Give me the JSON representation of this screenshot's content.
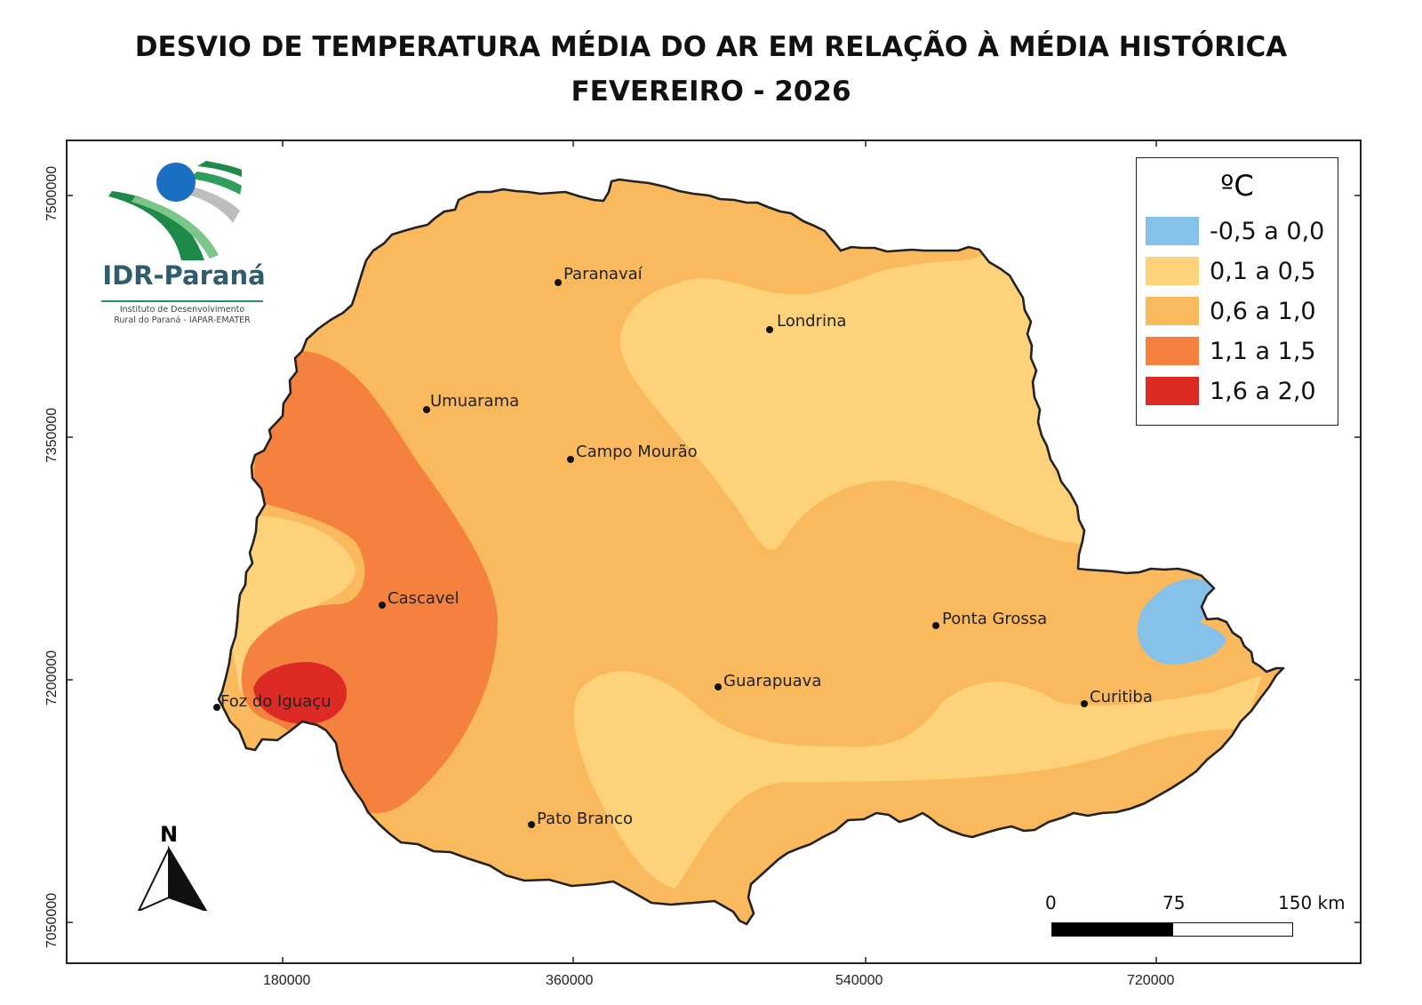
{
  "title": {
    "line1": "DESVIO DE TEMPERATURA MÉDIA DO AR EM RELAÇÃO À MÉDIA HISTÓRICA",
    "line2": "FEVEREIRO - 2026"
  },
  "logo": {
    "name": "IDR-Paraná",
    "subtitle_line1": "Instituto de Desenvolvimento",
    "subtitle_line2": "Rural do Paraná - IAPAR-EMATER",
    "colors": {
      "green": "#1e8a4a",
      "blue": "#1a6fc2",
      "gray": "#bdbdbd"
    }
  },
  "legend": {
    "title": "ºC",
    "items": [
      {
        "label": "-0,5 a 0,0",
        "color": "#86c1ea"
      },
      {
        "label": "0,1 a 0,5",
        "color": "#fdd27a"
      },
      {
        "label": "0,6 a 1,0",
        "color": "#fbb95d"
      },
      {
        "label": "1,1 a 1,5",
        "color": "#f4823e"
      },
      {
        "label": "1,6 a 2,0",
        "color": "#dd2a25"
      }
    ]
  },
  "axes": {
    "x_ticks": [
      "180000",
      "360000",
      "540000",
      "720000"
    ],
    "y_ticks": [
      "7500000",
      "7350000",
      "7200000",
      "7050000"
    ]
  },
  "cities": [
    {
      "name": "Paranavaí"
    },
    {
      "name": "Londrina"
    },
    {
      "name": "Umuarama"
    },
    {
      "name": "Campo Mourão"
    },
    {
      "name": "Cascavel"
    },
    {
      "name": "Ponta Grossa"
    },
    {
      "name": "Guarapuava"
    },
    {
      "name": "Curitiba"
    },
    {
      "name": "Foz do Iguaçu"
    },
    {
      "name": "Pato Branco"
    }
  ],
  "north_arrow": {
    "label": "N"
  },
  "scale": {
    "labels": [
      "0",
      "75",
      "150 km"
    ]
  }
}
